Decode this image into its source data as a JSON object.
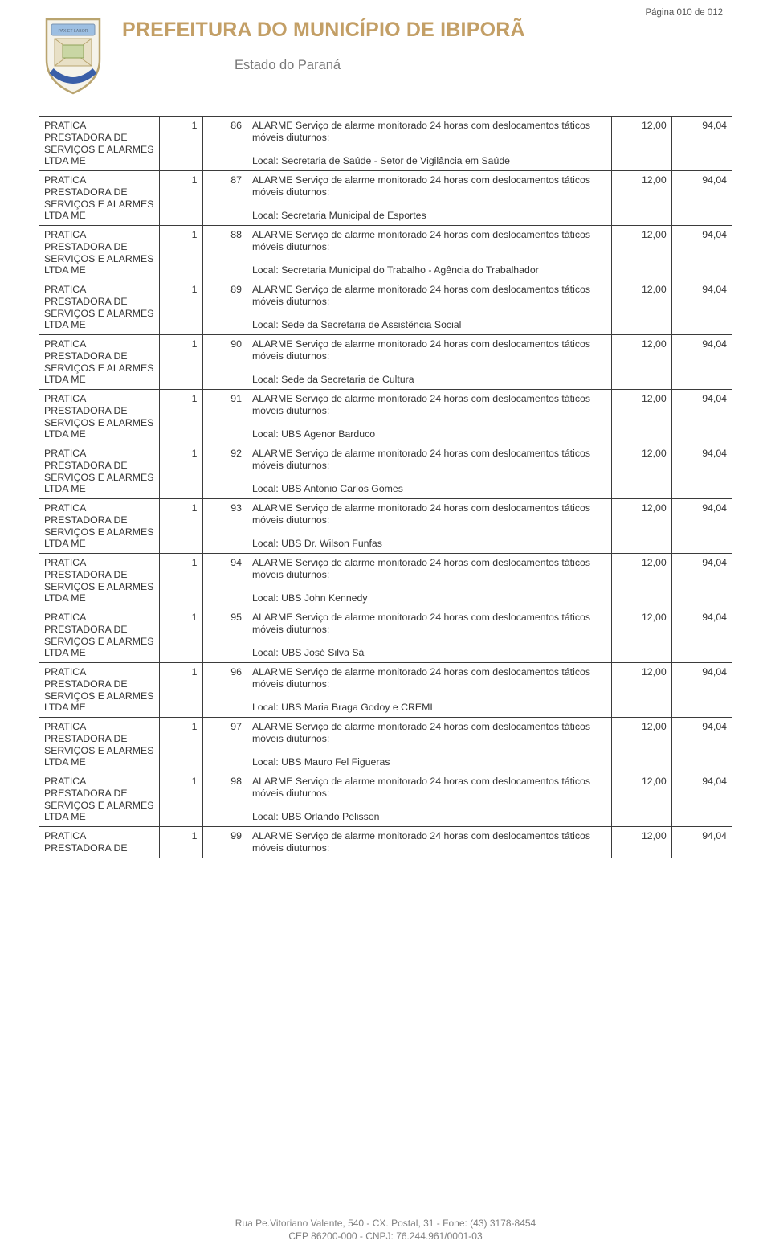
{
  "page_label": "Página 010 de 012",
  "header": {
    "title": "PREFEITURA DO MUNICÍPIO DE IBIPORÃ",
    "subtitle": "Estado do Paraná"
  },
  "common": {
    "supplier": "PRATICA PRESTADORA DE SERVIÇOS E ALARMES LTDA  ME",
    "supplier_short": "PRATICA PRESTADORA DE",
    "qty": "1",
    "desc_prefix": "ALARME  Serviço de alarme monitorado 24 horas com deslocamentos táticos móveis diuturnos:",
    "price1": "12,00",
    "price2": "94,04"
  },
  "rows": [
    {
      "n": "86",
      "loc": "Local: Secretaria de Saúde - Setor de Vigilância em Saúde"
    },
    {
      "n": "87",
      "loc": "Local: Secretaria Municipal de Esportes"
    },
    {
      "n": "88",
      "loc": "Local: Secretaria Municipal do Trabalho - Agência do Trabalhador"
    },
    {
      "n": "89",
      "loc": "Local: Sede da Secretaria de Assistência Social"
    },
    {
      "n": "90",
      "loc": "Local: Sede da Secretaria de Cultura"
    },
    {
      "n": "91",
      "loc": "Local: UBS Agenor Barduco"
    },
    {
      "n": "92",
      "loc": "Local: UBS Antonio Carlos Gomes"
    },
    {
      "n": "93",
      "loc": "Local: UBS Dr. Wilson Funfas"
    },
    {
      "n": "94",
      "loc": "Local: UBS John Kennedy"
    },
    {
      "n": "95",
      "loc": "Local: UBS José Silva Sá"
    },
    {
      "n": "96",
      "loc": "Local: UBS Maria Braga Godoy e CREMI"
    },
    {
      "n": "97",
      "loc": "Local: UBS Mauro Fel Figueras"
    },
    {
      "n": "98",
      "loc": "Local: UBS Orlando Pelisson"
    },
    {
      "n": "99",
      "loc": ""
    }
  ],
  "footer": {
    "line1": "Rua Pe.Vitoriano Valente, 540 - CX. Postal, 31 - Fone: (43) 3178-8454",
    "line2": "CEP 86200-000 - CNPJ: 76.244.961/0001-03"
  },
  "colors": {
    "title": "#c39f66",
    "text": "#353535",
    "border": "#3b3b3b",
    "footer": "#7e7e7e"
  }
}
